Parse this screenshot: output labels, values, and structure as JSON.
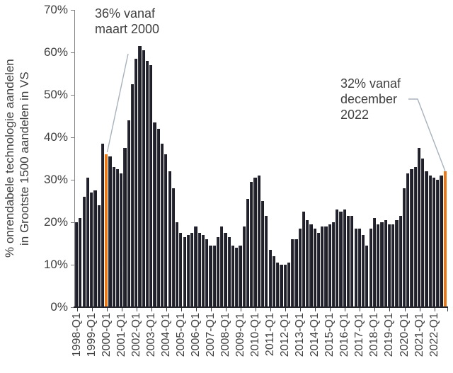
{
  "chart_data": {
    "type": "bar",
    "title": "",
    "ylabel_lines": [
      "% onrendabele technologie aandelen",
      "in Grootste 1500 aandelen in VS"
    ],
    "ylim": [
      0,
      70
    ],
    "ytick_labels": [
      "0%",
      "10%",
      "20%",
      "30%",
      "40%",
      "50%",
      "60%",
      "70%"
    ],
    "xtick_labels": [
      "1998-Q1",
      "1999-Q1",
      "2000-Q1",
      "2001-Q1",
      "2002-Q1",
      "2003-Q1",
      "2004-Q1",
      "2005-Q1",
      "2006-Q1",
      "2007-Q1",
      "2008-Q1",
      "2009-Q1",
      "2010-Q1",
      "2011-Q1",
      "2012-Q1",
      "2013-Q1",
      "2014-Q1",
      "2015-Q1",
      "2016-Q1",
      "2017-Q1",
      "2018-Q1",
      "2019-Q1",
      "2020-Q1",
      "2021-Q1",
      "2022-Q1"
    ],
    "x": [
      "1998-Q1",
      "1998-Q2",
      "1998-Q3",
      "1998-Q4",
      "1999-Q1",
      "1999-Q2",
      "1999-Q3",
      "1999-Q4",
      "2000-Q1",
      "2000-Q2",
      "2000-Q3",
      "2000-Q4",
      "2001-Q1",
      "2001-Q2",
      "2001-Q3",
      "2001-Q4",
      "2002-Q1",
      "2002-Q2",
      "2002-Q3",
      "2002-Q4",
      "2003-Q1",
      "2003-Q2",
      "2003-Q3",
      "2003-Q4",
      "2004-Q1",
      "2004-Q2",
      "2004-Q3",
      "2004-Q4",
      "2005-Q1",
      "2005-Q2",
      "2005-Q3",
      "2005-Q4",
      "2006-Q1",
      "2006-Q2",
      "2006-Q3",
      "2006-Q4",
      "2007-Q1",
      "2007-Q2",
      "2007-Q3",
      "2007-Q4",
      "2008-Q1",
      "2008-Q2",
      "2008-Q3",
      "2008-Q4",
      "2009-Q1",
      "2009-Q2",
      "2009-Q3",
      "2009-Q4",
      "2010-Q1",
      "2010-Q2",
      "2010-Q3",
      "2010-Q4",
      "2011-Q1",
      "2011-Q2",
      "2011-Q3",
      "2011-Q4",
      "2012-Q1",
      "2012-Q2",
      "2012-Q3",
      "2012-Q4",
      "2013-Q1",
      "2013-Q2",
      "2013-Q3",
      "2013-Q4",
      "2014-Q1",
      "2014-Q2",
      "2014-Q3",
      "2014-Q4",
      "2015-Q1",
      "2015-Q2",
      "2015-Q3",
      "2015-Q4",
      "2016-Q1",
      "2016-Q2",
      "2016-Q3",
      "2016-Q4",
      "2017-Q1",
      "2017-Q2",
      "2017-Q3",
      "2017-Q4",
      "2018-Q1",
      "2018-Q2",
      "2018-Q3",
      "2018-Q4",
      "2019-Q1",
      "2019-Q2",
      "2019-Q3",
      "2019-Q4",
      "2020-Q1",
      "2020-Q2",
      "2020-Q3",
      "2020-Q4",
      "2021-Q1",
      "2021-Q2",
      "2021-Q3",
      "2021-Q4",
      "2022-Q1",
      "2022-Q2",
      "2022-Q3",
      "2022-Q4"
    ],
    "values": [
      20,
      21,
      26,
      30.5,
      27,
      27.5,
      24,
      38.5,
      36,
      35.5,
      33,
      32.5,
      31.5,
      37.5,
      44,
      52.5,
      58.5,
      61.5,
      60.5,
      58,
      57,
      43.5,
      42,
      38.5,
      36,
      32,
      28,
      20,
      17.5,
      16.5,
      17,
      17.5,
      19,
      17.5,
      17,
      16,
      14.5,
      14.5,
      16.5,
      19,
      17.5,
      16.5,
      14.5,
      14,
      14.5,
      19,
      25.5,
      29.5,
      30.5,
      31,
      25,
      21.5,
      13.5,
      12,
      10.5,
      10,
      10,
      10.5,
      16,
      16,
      18.5,
      22.5,
      20.5,
      19.5,
      18.5,
      17.5,
      19,
      19,
      19.5,
      20,
      23,
      22.5,
      23,
      21.5,
      21.5,
      18.5,
      18.5,
      17,
      14.5,
      18.5,
      21,
      19.5,
      20,
      20.5,
      19.5,
      19.5,
      20.5,
      21.5,
      28,
      31.5,
      32.5,
      33,
      37.5,
      35,
      32,
      31,
      30.5,
      30,
      31,
      32
    ],
    "highlight_indices": [
      8,
      99
    ],
    "annotations": [
      {
        "lines": [
          "36% vanaf",
          "maart 2000"
        ]
      },
      {
        "lines": [
          "32% vanaf",
          "december",
          "2022"
        ]
      }
    ],
    "colors": {
      "bar": "#1d1d28",
      "bar_edge": "#3a3a46",
      "highlight": "#e87818",
      "y_axis": "#808080",
      "x_axis": "#26262f",
      "leader": "#a8b2bc",
      "text": "#3f3f3f"
    }
  }
}
